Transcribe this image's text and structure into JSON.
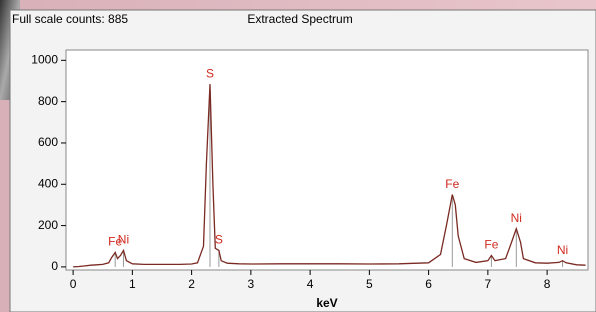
{
  "chart_data": {
    "type": "line",
    "header": "Full scale counts: 885",
    "title": "Extracted Spectrum",
    "x_label": "keV",
    "xlim": [
      -0.12,
      8.69
    ],
    "xticks": [
      0,
      1,
      2,
      3,
      4,
      5,
      6,
      7,
      8
    ],
    "ylim": [
      -15,
      1050
    ],
    "yticks": [
      0,
      200,
      400,
      600,
      800,
      1000
    ],
    "series": [
      {
        "color": "#7a2a22",
        "x": [
          0,
          0.1,
          0.2,
          0.3,
          0.4,
          0.5,
          0.6,
          0.65,
          0.71,
          0.75,
          0.8,
          0.85,
          0.9,
          1.0,
          1.2,
          1.5,
          1.8,
          2.0,
          2.1,
          2.2,
          2.25,
          2.31,
          2.36,
          2.4,
          2.46,
          2.5,
          2.6,
          2.8,
          3.0,
          3.5,
          4.0,
          4.5,
          5.0,
          5.5,
          6.0,
          6.2,
          6.3,
          6.4,
          6.45,
          6.5,
          6.6,
          6.8,
          7.0,
          7.06,
          7.12,
          7.3,
          7.4,
          7.48,
          7.55,
          7.6,
          7.8,
          8.0,
          8.2,
          8.26,
          8.32,
          8.5,
          8.65
        ],
        "values": [
          0,
          2,
          5,
          8,
          10,
          12,
          20,
          45,
          70,
          40,
          55,
          80,
          30,
          15,
          12,
          12,
          12,
          14,
          20,
          100,
          500,
          885,
          400,
          90,
          80,
          30,
          18,
          15,
          14,
          15,
          15,
          15,
          14,
          15,
          20,
          60,
          200,
          350,
          300,
          150,
          40,
          22,
          30,
          55,
          30,
          40,
          120,
          185,
          120,
          40,
          20,
          18,
          22,
          30,
          20,
          10,
          8
        ]
      }
    ],
    "annotations": [
      {
        "text": "Fe",
        "x": 0.71,
        "y": 70
      },
      {
        "text": "Ni",
        "x": 0.85,
        "y": 80
      },
      {
        "text": "S",
        "x": 2.31,
        "y": 885
      },
      {
        "text": "S",
        "x": 2.46,
        "y": 80
      },
      {
        "text": "Fe",
        "x": 6.4,
        "y": 350
      },
      {
        "text": "Fe",
        "x": 7.06,
        "y": 55
      },
      {
        "text": "Ni",
        "x": 7.48,
        "y": 185
      },
      {
        "text": "Ni",
        "x": 8.26,
        "y": 30
      }
    ]
  }
}
